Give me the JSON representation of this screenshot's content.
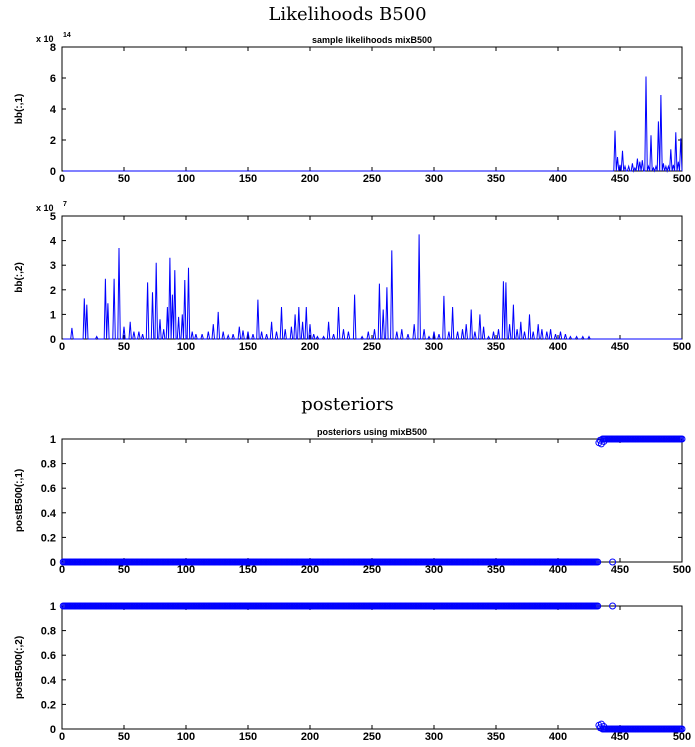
{
  "figure": {
    "section1_title": "Likelihoods B500",
    "section2_title": "posteriors"
  },
  "chart_data": [
    {
      "type": "line",
      "title": "sample likelihoods mixB500",
      "ylabel": "bb(:,1)",
      "xlim": [
        0,
        500
      ],
      "ylim": [
        0,
        8
      ],
      "y_multiplier": "x 10",
      "y_exponent": "14",
      "xticks": [
        "0",
        "50",
        "100",
        "150",
        "200",
        "250",
        "300",
        "350",
        "400",
        "450",
        "500"
      ],
      "yticks": [
        "0",
        "2",
        "4",
        "6",
        "8"
      ],
      "color": "#0000ff",
      "peaks": [
        [
          446,
          2.6
        ],
        [
          448,
          0.9
        ],
        [
          450,
          0.4
        ],
        [
          452,
          1.3
        ],
        [
          454,
          0.3
        ],
        [
          457,
          0.3
        ],
        [
          460,
          0.5
        ],
        [
          462,
          0.2
        ],
        [
          464,
          0.8
        ],
        [
          466,
          0.6
        ],
        [
          468,
          0.7
        ],
        [
          471,
          6.1
        ],
        [
          473,
          0.3
        ],
        [
          475,
          2.3
        ],
        [
          477,
          0.2
        ],
        [
          479,
          0.3
        ],
        [
          481,
          3.2
        ],
        [
          483,
          4.9
        ],
        [
          485,
          0.5
        ],
        [
          487,
          0.3
        ],
        [
          489,
          0.3
        ],
        [
          491,
          1.4
        ],
        [
          493,
          0.4
        ],
        [
          495,
          2.5
        ],
        [
          497,
          0.6
        ],
        [
          499,
          2.1
        ]
      ]
    },
    {
      "type": "line",
      "title": "",
      "ylabel": "bb(:,2)",
      "xlim": [
        0,
        500
      ],
      "ylim": [
        0,
        5
      ],
      "y_multiplier": "x 10",
      "y_exponent": "7",
      "xticks": [
        "0",
        "50",
        "100",
        "150",
        "200",
        "250",
        "300",
        "350",
        "400",
        "450",
        "500"
      ],
      "yticks": [
        "0",
        "1",
        "2",
        "3",
        "4",
        "5"
      ],
      "color": "#0000ff",
      "peaks": [
        [
          8,
          0.45
        ],
        [
          18,
          1.65
        ],
        [
          20,
          1.4
        ],
        [
          28,
          0.1
        ],
        [
          35,
          2.45
        ],
        [
          37,
          1.45
        ],
        [
          42,
          2.45
        ],
        [
          46,
          3.7
        ],
        [
          50,
          0.5
        ],
        [
          55,
          0.7
        ],
        [
          58,
          0.3
        ],
        [
          62,
          0.3
        ],
        [
          65,
          0.2
        ],
        [
          69,
          2.3
        ],
        [
          73,
          1.9
        ],
        [
          76,
          3.1
        ],
        [
          79,
          0.8
        ],
        [
          82,
          0.4
        ],
        [
          85,
          1.3
        ],
        [
          87,
          3.3
        ],
        [
          89,
          1.8
        ],
        [
          91,
          2.8
        ],
        [
          94,
          0.9
        ],
        [
          97,
          1.0
        ],
        [
          99,
          2.4
        ],
        [
          102,
          2.9
        ],
        [
          105,
          0.3
        ],
        [
          108,
          0.2
        ],
        [
          113,
          0.2
        ],
        [
          118,
          0.3
        ],
        [
          122,
          0.6
        ],
        [
          126,
          1.1
        ],
        [
          130,
          0.3
        ],
        [
          134,
          0.15
        ],
        [
          138,
          0.2
        ],
        [
          143,
          0.5
        ],
        [
          146,
          0.35
        ],
        [
          150,
          0.3
        ],
        [
          154,
          0.2
        ],
        [
          158,
          1.6
        ],
        [
          161,
          0.3
        ],
        [
          165,
          0.2
        ],
        [
          169,
          0.7
        ],
        [
          173,
          0.3
        ],
        [
          177,
          1.3
        ],
        [
          180,
          0.4
        ],
        [
          185,
          0.5
        ],
        [
          188,
          1.0
        ],
        [
          191,
          1.3
        ],
        [
          194,
          0.7
        ],
        [
          197,
          1.3
        ],
        [
          200,
          0.6
        ],
        [
          203,
          0.2
        ],
        [
          206,
          0.1
        ],
        [
          211,
          0.1
        ],
        [
          215,
          0.7
        ],
        [
          219,
          0.2
        ],
        [
          223,
          1.3
        ],
        [
          227,
          0.4
        ],
        [
          231,
          0.3
        ],
        [
          236,
          1.8
        ],
        [
          242,
          0.1
        ],
        [
          247,
          0.3
        ],
        [
          252,
          0.4
        ],
        [
          256,
          2.25
        ],
        [
          259,
          1.2
        ],
        [
          262,
          2.1
        ],
        [
          266,
          3.6
        ],
        [
          270,
          0.3
        ],
        [
          274,
          0.4
        ],
        [
          279,
          0.2
        ],
        [
          284,
          0.6
        ],
        [
          288,
          4.25
        ],
        [
          292,
          0.4
        ],
        [
          296,
          0.1
        ],
        [
          300,
          0.3
        ],
        [
          304,
          0.2
        ],
        [
          308,
          1.75
        ],
        [
          312,
          0.3
        ],
        [
          315,
          1.3
        ],
        [
          319,
          0.3
        ],
        [
          323,
          0.4
        ],
        [
          326,
          0.6
        ],
        [
          330,
          1.2
        ],
        [
          333,
          0.3
        ],
        [
          337,
          1.0
        ],
        [
          340,
          0.5
        ],
        [
          344,
          0.1
        ],
        [
          348,
          0.3
        ],
        [
          352,
          0.4
        ],
        [
          356,
          2.35
        ],
        [
          358,
          2.3
        ],
        [
          361,
          0.6
        ],
        [
          364,
          1.4
        ],
        [
          367,
          0.4
        ],
        [
          370,
          0.7
        ],
        [
          373,
          0.3
        ],
        [
          377,
          1.0
        ],
        [
          380,
          0.3
        ],
        [
          384,
          0.6
        ],
        [
          387,
          0.4
        ],
        [
          391,
          0.3
        ],
        [
          394,
          0.4
        ],
        [
          398,
          0.2
        ],
        [
          402,
          0.3
        ],
        [
          406,
          0.2
        ],
        [
          410,
          0.1
        ],
        [
          415,
          0.1
        ],
        [
          420,
          0.1
        ],
        [
          425,
          0.1
        ]
      ]
    },
    {
      "type": "scatter",
      "title": "posteriors using mixB500",
      "ylabel": "postB500(:,1)",
      "xlim": [
        0,
        500
      ],
      "ylim": [
        0,
        1
      ],
      "xticks": [
        "0",
        "50",
        "100",
        "150",
        "200",
        "250",
        "300",
        "350",
        "400",
        "450",
        "500"
      ],
      "yticks": [
        "0",
        "0.2",
        "0.4",
        "0.6",
        "0.8",
        "1"
      ],
      "color": "#0000ff",
      "low_range": [
        1,
        432
      ],
      "high_range": [
        436,
        500
      ],
      "extra_points": [
        [
          433,
          0.97
        ],
        [
          435,
          0.96
        ],
        [
          434,
          0.99
        ],
        [
          437,
          0.98
        ],
        [
          444,
          0.0
        ]
      ]
    },
    {
      "type": "scatter",
      "title": "",
      "ylabel": "postB500(:,2)",
      "xlim": [
        0,
        500
      ],
      "ylim": [
        0,
        1
      ],
      "xticks": [
        "0",
        "50",
        "100",
        "150",
        "200",
        "250",
        "300",
        "350",
        "400",
        "450",
        "500"
      ],
      "yticks": [
        "0",
        "0.2",
        "0.4",
        "0.6",
        "0.8",
        "1"
      ],
      "color": "#0000ff",
      "high_range": [
        1,
        432
      ],
      "low_range": [
        436,
        500
      ],
      "extra_points": [
        [
          433,
          0.03
        ],
        [
          435,
          0.04
        ],
        [
          434,
          0.01
        ],
        [
          437,
          0.02
        ],
        [
          444,
          1.0
        ]
      ]
    }
  ]
}
